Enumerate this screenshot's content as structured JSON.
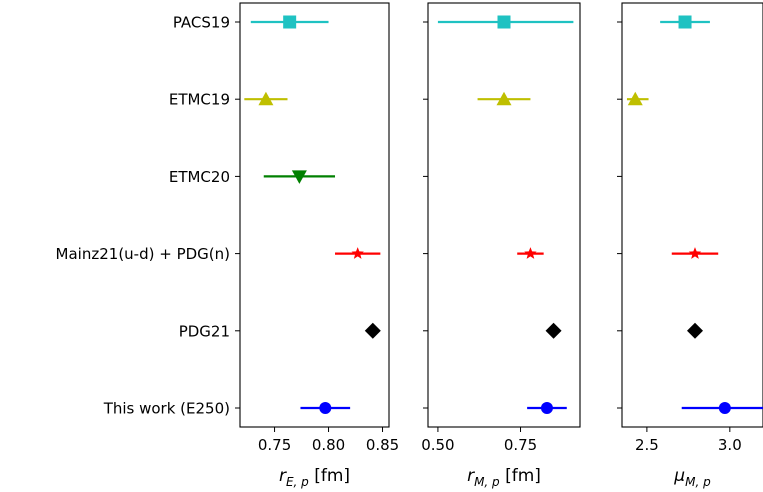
{
  "chart_data": {
    "type": "forest",
    "categories": [
      "PACS19",
      "ETMC19",
      "ETMC20",
      "Mainz21(u-d) + PDG(n)",
      "PDG21",
      "This work (E250)"
    ],
    "markers": {
      "PACS19": {
        "shape": "square",
        "color": "#1fc2c2"
      },
      "ETMC19": {
        "shape": "triangle-up",
        "color": "#bfbf00"
      },
      "ETMC20": {
        "shape": "triangle-down",
        "color": "#008000"
      },
      "Mainz21(u-d) + PDG(n)": {
        "shape": "star",
        "color": "#ff0000"
      },
      "PDG21": {
        "shape": "diamond",
        "color": "#000000"
      },
      "This work (E250)": {
        "shape": "circle",
        "color": "#0000ff"
      }
    },
    "panels": [
      {
        "xlabel_main": "r",
        "xlabel_sub": "E, p",
        "xlabel_unit": " [fm]",
        "xlim": [
          0.718,
          0.856
        ],
        "xticks": [
          0.75,
          0.8,
          0.85
        ],
        "xtick_labels": [
          "0.75",
          "0.80",
          "0.85"
        ],
        "points": [
          {
            "label": "PACS19",
            "value": 0.764,
            "err_low": 0.728,
            "err_high": 0.8
          },
          {
            "label": "ETMC19",
            "value": 0.742,
            "err_low": 0.722,
            "err_high": 0.762
          },
          {
            "label": "ETMC20",
            "value": 0.773,
            "err_low": 0.74,
            "err_high": 0.806
          },
          {
            "label": "Mainz21(u-d) + PDG(n)",
            "value": 0.827,
            "err_low": 0.806,
            "err_high": 0.848
          },
          {
            "label": "PDG21",
            "value": 0.841,
            "err_low": 0.841,
            "err_high": 0.841
          },
          {
            "label": "This work (E250)",
            "value": 0.797,
            "err_low": 0.774,
            "err_high": 0.82
          }
        ]
      },
      {
        "xlabel_main": "r",
        "xlabel_sub": "M, p",
        "xlabel_unit": " [fm]",
        "xlim": [
          0.47,
          0.93
        ],
        "xticks": [
          0.5,
          0.75
        ],
        "xtick_labels": [
          "0.50",
          "0.75"
        ],
        "points": [
          {
            "label": "PACS19",
            "value": 0.7,
            "err_low": 0.5,
            "err_high": 0.91
          },
          {
            "label": "ETMC19",
            "value": 0.7,
            "err_low": 0.62,
            "err_high": 0.78
          },
          {
            "label": "ETMC20",
            "value": null,
            "err_low": null,
            "err_high": null
          },
          {
            "label": "Mainz21(u-d) + PDG(n)",
            "value": 0.78,
            "err_low": 0.74,
            "err_high": 0.82
          },
          {
            "label": "PDG21",
            "value": 0.85,
            "err_low": 0.85,
            "err_high": 0.85
          },
          {
            "label": "This work (E250)",
            "value": 0.83,
            "err_low": 0.77,
            "err_high": 0.89
          }
        ]
      },
      {
        "xlabel_main": "μ",
        "xlabel_sub": "M, p",
        "xlabel_unit": "",
        "xlim": [
          2.35,
          3.2
        ],
        "xticks": [
          2.5,
          3.0
        ],
        "xtick_labels": [
          "2.5",
          "3.0"
        ],
        "points": [
          {
            "label": "PACS19",
            "value": 2.73,
            "err_low": 2.58,
            "err_high": 2.88
          },
          {
            "label": "ETMC19",
            "value": 2.43,
            "err_low": 2.38,
            "err_high": 2.51
          },
          {
            "label": "ETMC20",
            "value": null,
            "err_low": null,
            "err_high": null
          },
          {
            "label": "Mainz21(u-d) + PDG(n)",
            "value": 2.79,
            "err_low": 2.65,
            "err_high": 2.93
          },
          {
            "label": "PDG21",
            "value": 2.79,
            "err_low": 2.79,
            "err_high": 2.79
          },
          {
            "label": "This work (E250)",
            "value": 2.97,
            "err_low": 2.71,
            "err_high": 3.21
          }
        ]
      }
    ]
  }
}
